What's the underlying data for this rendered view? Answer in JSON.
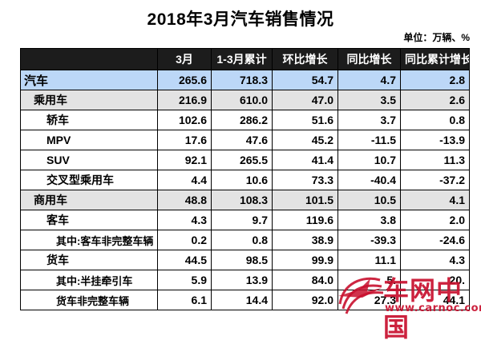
{
  "title": "2018年3月汽车销售情况",
  "unit_label": "单位：万辆、%",
  "table": {
    "headers": [
      "",
      "3月",
      "1-3月累计",
      "环比增长",
      "同比增长",
      "同比累计增长"
    ],
    "rows": [
      {
        "level": 0,
        "label": "汽车",
        "values": [
          "265.6",
          "718.3",
          "54.7",
          "4.7",
          "2.8"
        ]
      },
      {
        "level": 1,
        "label": "乘用车",
        "values": [
          "216.9",
          "610.0",
          "47.0",
          "3.5",
          "2.6"
        ]
      },
      {
        "level": 2,
        "label": "轿车",
        "values": [
          "102.6",
          "286.2",
          "51.6",
          "3.7",
          "0.8"
        ]
      },
      {
        "level": 2,
        "label": "MPV",
        "values": [
          "17.6",
          "47.6",
          "45.2",
          "-11.5",
          "-13.9"
        ]
      },
      {
        "level": 2,
        "label": "SUV",
        "values": [
          "92.1",
          "265.5",
          "41.4",
          "10.7",
          "11.3"
        ]
      },
      {
        "level": 2,
        "label": "交叉型乘用车",
        "values": [
          "4.4",
          "10.6",
          "73.3",
          "-40.4",
          "-37.2"
        ]
      },
      {
        "level": 1,
        "label": "商用车",
        "values": [
          "48.8",
          "108.3",
          "101.5",
          "10.5",
          "4.1"
        ]
      },
      {
        "level": 2,
        "label": "客车",
        "values": [
          "4.3",
          "9.7",
          "119.6",
          "3.8",
          "2.0"
        ]
      },
      {
        "level": 3,
        "label": "其中:客车非完整车辆",
        "values": [
          "0.2",
          "0.8",
          "38.9",
          "-39.3",
          "-24.6"
        ]
      },
      {
        "level": 2,
        "label": "货车",
        "values": [
          "44.5",
          "98.5",
          "99.9",
          "11.1",
          "4.3"
        ]
      },
      {
        "level": 3,
        "label": "其中:半挂牵引车",
        "values": [
          "5.9",
          "13.9",
          "84.0",
          "5.",
          "20."
        ]
      },
      {
        "level": 3,
        "label": "货车非完整车辆",
        "values": [
          "6.1",
          "14.4",
          "92.0",
          "27.3",
          "44.1"
        ]
      }
    ]
  },
  "watermark": {
    "brand": "车网中国",
    "url": "www.carnoc.com",
    "color": "#c8102e"
  },
  "colors": {
    "header_bg": "#1c1c1c",
    "total_row_bg": "#bcd7f7",
    "category_row_bg": "#e3e3e3"
  }
}
